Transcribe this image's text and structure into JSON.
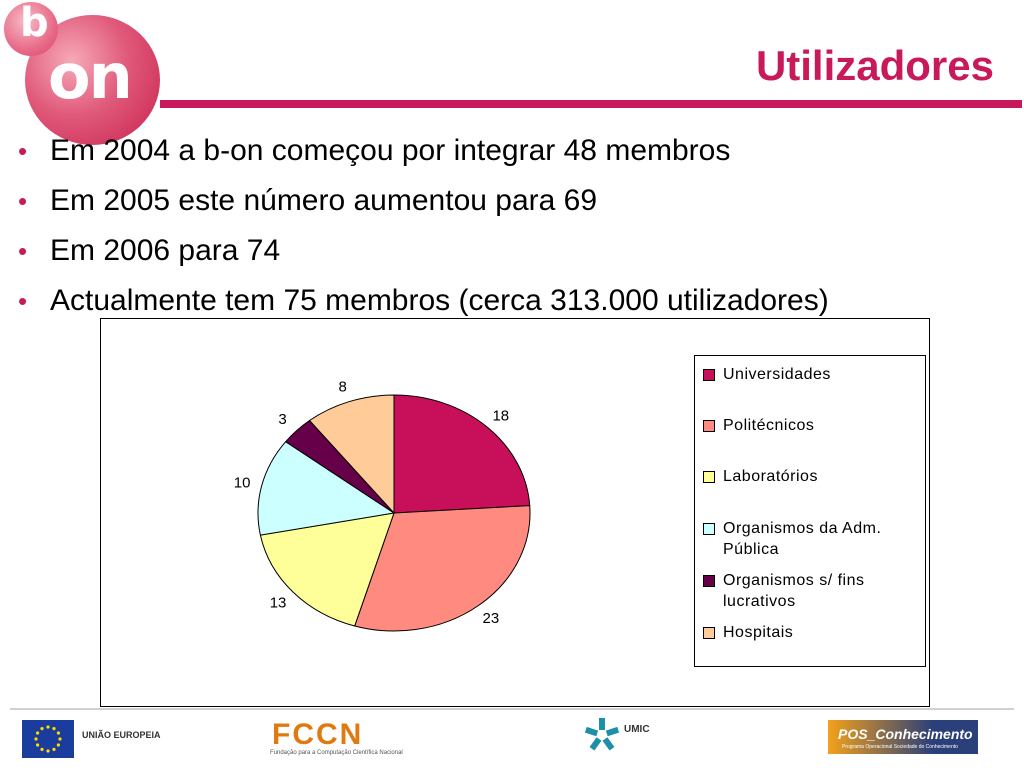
{
  "logo": {
    "b": "b",
    "on": "on"
  },
  "slide": {
    "title": "Utilizadores",
    "bullets": [
      "Em 2004 a b-on começou por integrar 48 membros",
      "Em 2005 este número aumentou para 69",
      "Em 2006 para 74",
      "Actualmente tem 75 membros (cerca 313.000 utilizadores)"
    ]
  },
  "chart_data": {
    "type": "pie",
    "title": "",
    "categories": [
      "Universidades",
      "Politécnicos",
      "Laboratórios",
      "Organismos da Adm. Pública",
      "Organismos s/ fins lucrativos",
      "Hospitais"
    ],
    "values": [
      18,
      23,
      13,
      10,
      3,
      8
    ],
    "colors": [
      "#c8105a",
      "#ff8a80",
      "#ffff99",
      "#ccffff",
      "#660049",
      "#ffcc99"
    ],
    "legend": "right",
    "start": "12 o'clock",
    "direction": "clockwise"
  },
  "legend_items": [
    {
      "label": "Universidades",
      "color": "#c8105a"
    },
    {
      "label": "Politécnicos",
      "color": "#ff8a80"
    },
    {
      "label": "Laboratórios",
      "color": "#ffff99"
    },
    {
      "label": "Organismos da Adm. Pública",
      "color": "#ccffff"
    },
    {
      "label": "Organismos s/ fins lucrativos",
      "color": "#660049"
    },
    {
      "label": "Hospitais",
      "color": "#ffcc99"
    }
  ],
  "footer": {
    "eu_label": "UNIÃO EUROPEIA",
    "fccn": "FCCN",
    "fccn_sub": "Fundação para a Computação Científica Nacional",
    "umic": "UMIC",
    "pos": "POS_Conhecimento",
    "pos_sub": "Programa Operacional Sociedade do Conhecimento"
  }
}
